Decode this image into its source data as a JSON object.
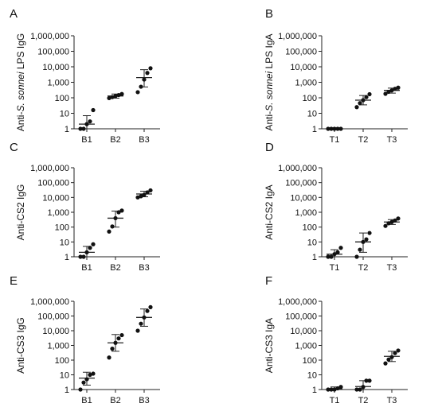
{
  "figure": {
    "colors": {
      "axis": "#222222",
      "marker": "#111111",
      "text": "#111111"
    }
  },
  "chart_data": [
    {
      "panel_label": "A",
      "type": "scatter",
      "yscale": "log",
      "ylim": [
        1,
        1000000
      ],
      "ylabel_parts": [
        {
          "text": "Anti-"
        },
        {
          "text": "S. sonnei",
          "italic": true
        },
        {
          "text": " LPS IgG"
        }
      ],
      "yticks": [
        "1",
        "10",
        "100",
        "1,000",
        "10,000",
        "100,000",
        "1,000,000"
      ],
      "categories": [
        "B1",
        "B2",
        "B3"
      ],
      "series": [
        {
          "points": [
            1,
            1,
            2,
            3,
            16
          ],
          "summary": {
            "center": 2,
            "low": 1,
            "high": 7
          }
        },
        {
          "points": [
            95,
            110,
            130,
            150,
            175
          ],
          "summary": {
            "center": 130,
            "low": 95,
            "high": 175
          }
        },
        {
          "points": [
            230,
            520,
            1500,
            4000,
            8000
          ],
          "summary": {
            "center": 2000,
            "low": 500,
            "high": 6500
          }
        }
      ]
    },
    {
      "panel_label": "B",
      "type": "scatter",
      "yscale": "log",
      "ylim": [
        1,
        1000000
      ],
      "ylabel_parts": [
        {
          "text": "Anti-"
        },
        {
          "text": "S. sonnei",
          "italic": true
        },
        {
          "text": " LPS IgA"
        }
      ],
      "yticks": [
        "1",
        "10",
        "100",
        "1,000",
        "10,000",
        "100,000",
        "1,000,000"
      ],
      "categories": [
        "T1",
        "T2",
        "T3"
      ],
      "series": [
        {
          "points": [
            1,
            1,
            1,
            1,
            1
          ],
          "summary": {
            "center": 1,
            "low": 1,
            "high": 1
          }
        },
        {
          "points": [
            25,
            45,
            70,
            110,
            170
          ],
          "summary": {
            "center": 70,
            "low": 35,
            "high": 140
          }
        },
        {
          "points": [
            180,
            240,
            300,
            380,
            450
          ],
          "summary": {
            "center": 300,
            "low": 200,
            "high": 420
          }
        }
      ]
    },
    {
      "panel_label": "C",
      "type": "scatter",
      "yscale": "log",
      "ylim": [
        1,
        1000000
      ],
      "ylabel_parts": [
        {
          "text": "Anti-CS2 IgG"
        }
      ],
      "yticks": [
        "1",
        "10",
        "100",
        "1,000",
        "10,000",
        "100,000",
        "1,000,000"
      ],
      "categories": [
        "B1",
        "B2",
        "B3"
      ],
      "series": [
        {
          "points": [
            1,
            1,
            2,
            4,
            7
          ],
          "summary": {
            "center": 2,
            "low": 1,
            "high": 5
          }
        },
        {
          "points": [
            50,
            110,
            400,
            1000,
            1300
          ],
          "summary": {
            "center": 400,
            "low": 100,
            "high": 1200
          }
        },
        {
          "points": [
            10000,
            12000,
            15000,
            22000,
            30000
          ],
          "summary": {
            "center": 17000,
            "low": 11000,
            "high": 26000
          }
        }
      ]
    },
    {
      "panel_label": "D",
      "type": "scatter",
      "yscale": "log",
      "ylim": [
        1,
        1000000
      ],
      "ylabel_parts": [
        {
          "text": "Anti-CS2 IgA"
        }
      ],
      "yticks": [
        "1",
        "10",
        "100",
        "1,000",
        "10,000",
        "100,000",
        "1,000,000"
      ],
      "categories": [
        "T1",
        "T2",
        "T3"
      ],
      "series": [
        {
          "points": [
            1,
            1,
            1.5,
            2,
            4
          ],
          "summary": {
            "center": 1.5,
            "low": 1,
            "high": 3
          }
        },
        {
          "points": [
            1,
            3,
            10,
            15,
            40
          ],
          "summary": {
            "center": 10,
            "low": 2,
            "high": 40
          }
        },
        {
          "points": [
            120,
            180,
            220,
            280,
            380
          ],
          "summary": {
            "center": 220,
            "low": 150,
            "high": 320
          }
        }
      ]
    },
    {
      "panel_label": "E",
      "type": "scatter",
      "yscale": "log",
      "ylim": [
        1,
        1000000
      ],
      "ylabel_parts": [
        {
          "text": "Anti-CS3 IgG"
        }
      ],
      "yticks": [
        "1",
        "10",
        "100",
        "1,000",
        "10,000",
        "100,000",
        "1,000,000"
      ],
      "categories": [
        "B1",
        "B2",
        "B3"
      ],
      "series": [
        {
          "points": [
            1,
            3,
            5,
            10,
            12
          ],
          "summary": {
            "center": 6,
            "low": 2,
            "high": 15
          }
        },
        {
          "points": [
            150,
            600,
            1500,
            3000,
            5000
          ],
          "summary": {
            "center": 1500,
            "low": 400,
            "high": 5500
          }
        },
        {
          "points": [
            10000,
            30000,
            80000,
            220000,
            400000
          ],
          "summary": {
            "center": 80000,
            "low": 20000,
            "high": 300000
          }
        }
      ]
    },
    {
      "panel_label": "F",
      "type": "scatter",
      "yscale": "log",
      "ylim": [
        1,
        1000000
      ],
      "ylabel_parts": [
        {
          "text": "Anti-CS3 IgA"
        }
      ],
      "yticks": [
        "1",
        "10",
        "100",
        "1,000",
        "10,000",
        "100,000",
        "1,000,000"
      ],
      "categories": [
        "T1",
        "T2",
        "T3"
      ],
      "series": [
        {
          "points": [
            1,
            1,
            1,
            1.2,
            1.5
          ],
          "summary": {
            "center": 1.1,
            "low": 1,
            "high": 1.5
          }
        },
        {
          "points": [
            1,
            1,
            1.5,
            4,
            4
          ],
          "summary": {
            "center": 1.6,
            "low": 1,
            "high": 4
          }
        },
        {
          "points": [
            60,
            110,
            160,
            300,
            450
          ],
          "summary": {
            "center": 180,
            "low": 80,
            "high": 400
          }
        }
      ]
    }
  ]
}
